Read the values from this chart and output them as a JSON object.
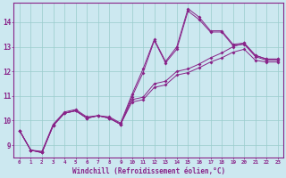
{
  "background_color": "#cce8f0",
  "grid_color": "#99cccc",
  "line_color": "#882288",
  "xlabel": "Windchill (Refroidissement éolien,°C)",
  "ylabel_ticks": [
    9,
    10,
    11,
    12,
    13,
    14
  ],
  "xlim": [
    -0.5,
    23.5
  ],
  "ylim": [
    8.5,
    14.8
  ],
  "x": [
    0,
    1,
    2,
    3,
    4,
    5,
    6,
    7,
    8,
    9,
    10,
    11,
    12,
    13,
    14,
    15,
    16,
    17,
    18,
    19,
    20,
    21,
    22,
    23
  ],
  "line1": [
    9.6,
    8.8,
    8.75,
    9.85,
    10.35,
    10.45,
    10.15,
    10.2,
    10.15,
    9.9,
    11.05,
    12.1,
    13.3,
    12.4,
    13.0,
    14.55,
    14.2,
    13.65,
    13.65,
    13.1,
    13.15,
    12.65,
    12.5,
    12.5
  ],
  "line2": [
    9.6,
    8.8,
    8.7,
    9.8,
    10.3,
    10.4,
    10.1,
    10.2,
    10.1,
    9.85,
    10.95,
    11.95,
    13.25,
    12.35,
    12.9,
    14.45,
    14.1,
    13.6,
    13.6,
    13.05,
    13.1,
    12.6,
    12.45,
    12.45
  ],
  "line3": [
    9.6,
    8.8,
    8.7,
    9.8,
    10.3,
    10.4,
    10.1,
    10.2,
    10.1,
    9.85,
    10.85,
    10.95,
    11.5,
    11.6,
    12.0,
    12.1,
    12.3,
    12.55,
    12.75,
    13.0,
    13.15,
    12.65,
    12.5,
    12.5
  ],
  "line4": [
    9.6,
    8.8,
    8.7,
    9.8,
    10.3,
    10.4,
    10.1,
    10.2,
    10.1,
    9.85,
    10.75,
    10.85,
    11.35,
    11.45,
    11.85,
    11.95,
    12.15,
    12.38,
    12.55,
    12.78,
    12.9,
    12.45,
    12.38,
    12.38
  ]
}
